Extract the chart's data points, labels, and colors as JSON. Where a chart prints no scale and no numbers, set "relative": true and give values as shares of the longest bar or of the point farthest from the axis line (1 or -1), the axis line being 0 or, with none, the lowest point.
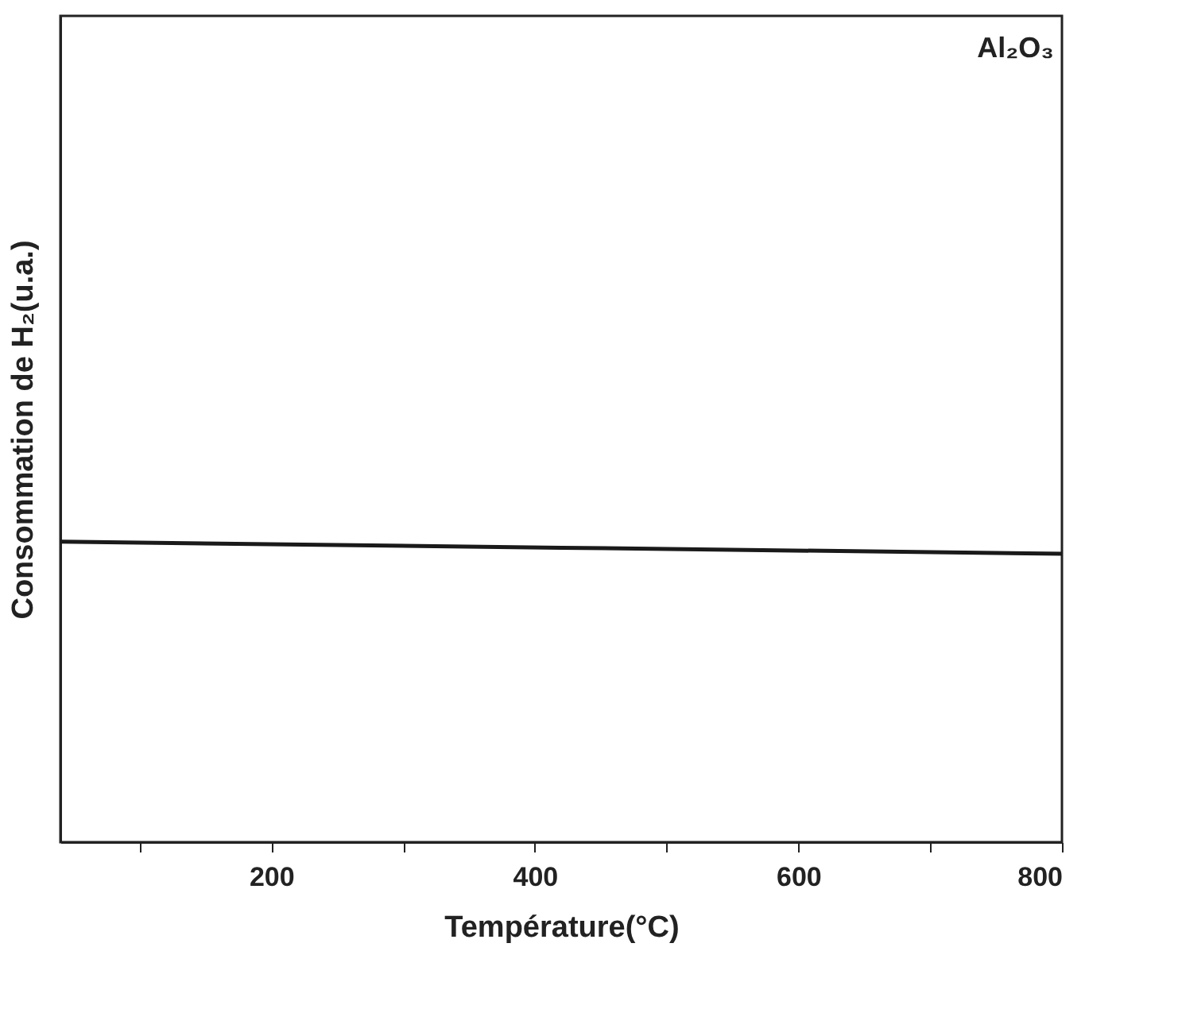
{
  "chart_data": {
    "type": "line",
    "xlabel": "Température(°C)",
    "ylabel": "Consommation de H₂(u.a.)",
    "annotations": [
      "Al₂O₃"
    ],
    "relative": true,
    "x": [
      40,
      420,
      800
    ],
    "series": [
      {
        "color": "#1a1a1a",
        "values": [
          1,
          0.98,
          0.96
        ]
      }
    ],
    "xlim": [
      40,
      800
    ],
    "xticks": [
      {
        "value": 100,
        "label": null
      },
      200,
      {
        "value": 300,
        "label": null
      },
      400,
      {
        "value": 500,
        "label": null
      },
      600,
      {
        "value": 700,
        "label": null
      },
      800
    ],
    "grid": false,
    "marker": "none",
    "line_style": "solid"
  }
}
